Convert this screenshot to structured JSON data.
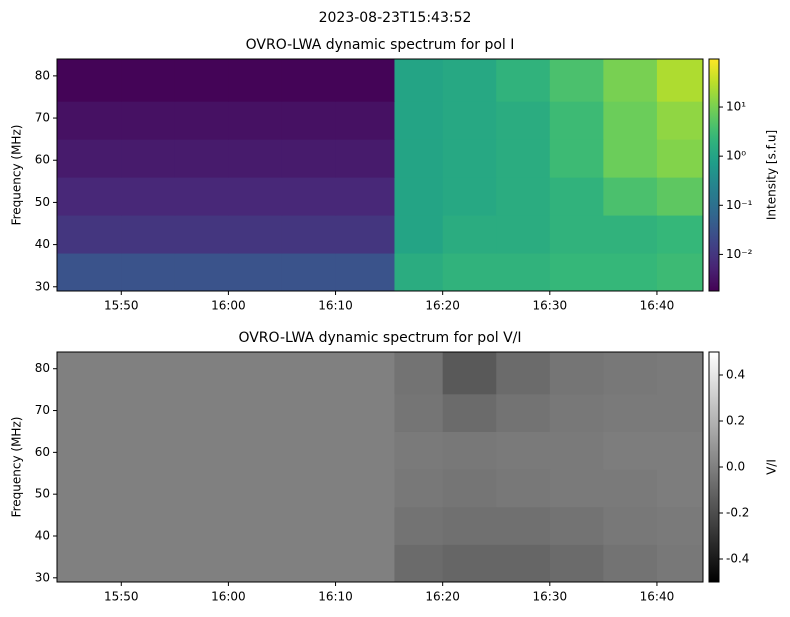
{
  "title": "2023-08-23T15:43:52",
  "chart_data": [
    {
      "type": "heatmap",
      "title": "OVRO-LWA dynamic spectrum for pol I",
      "ylabel": "Frequency (MHz)",
      "x": [
        944,
        950,
        955,
        960,
        965,
        970,
        975.5,
        980,
        985,
        990,
        995,
        1000,
        1004.3
      ],
      "y": [
        29,
        38,
        47,
        56,
        65,
        74,
        84
      ],
      "z": [
        [
          0.03,
          0.03,
          0.03,
          0.03,
          0.03,
          0.03,
          1.5,
          2,
          2,
          2.5,
          2.5,
          3
        ],
        [
          0.01,
          0.01,
          0.01,
          0.01,
          0.01,
          0.01,
          1,
          1.5,
          1.5,
          2,
          2,
          2.5
        ],
        [
          0.006,
          0.006,
          0.006,
          0.006,
          0.006,
          0.006,
          1,
          1.2,
          1.5,
          2,
          4,
          6
        ],
        [
          0.004,
          0.004,
          0.004,
          0.004,
          0.004,
          0.004,
          1,
          1.2,
          1.5,
          3,
          8,
          12
        ],
        [
          0.003,
          0.003,
          0.003,
          0.003,
          0.003,
          0.003,
          1,
          1.2,
          1.5,
          3,
          8,
          15
        ],
        [
          0.002,
          0.002,
          0.002,
          0.002,
          0.002,
          0.002,
          1,
          1.2,
          2,
          4,
          10,
          25
        ]
      ],
      "xlim": [
        944,
        1004.3
      ],
      "ylim": [
        29,
        84
      ],
      "xticks": [
        {
          "value": 950,
          "label": "15:50"
        },
        {
          "value": 960,
          "label": "16:00"
        },
        {
          "value": 970,
          "label": "16:10"
        },
        {
          "value": 980,
          "label": "16:20"
        },
        {
          "value": 990,
          "label": "16:30"
        },
        {
          "value": 1000,
          "label": "16:40"
        }
      ],
      "yticks": [
        30,
        40,
        50,
        60,
        70,
        80
      ],
      "colorbar": {
        "label": "Intensity [s.f.u]",
        "colormap": "viridis",
        "log": true,
        "lim": [
          0.0018,
          95
        ],
        "ticks": [
          {
            "value": 0.01,
            "label": "10⁻²"
          },
          {
            "value": 0.1,
            "label": "10⁻¹"
          },
          {
            "value": 1,
            "label": "10⁰"
          },
          {
            "value": 10,
            "label": "10¹"
          }
        ]
      }
    },
    {
      "type": "heatmap",
      "title": "OVRO-LWA dynamic spectrum for pol V/I",
      "ylabel": "Frequency (MHz)",
      "x": [
        944,
        950,
        955,
        960,
        965,
        970,
        975.5,
        980,
        985,
        990,
        995,
        1000,
        1004.3
      ],
      "y": [
        29,
        38,
        47,
        56,
        65,
        74,
        84
      ],
      "z": [
        [
          0,
          0,
          0,
          0,
          0,
          0,
          -0.08,
          -0.1,
          -0.1,
          -0.08,
          -0.05,
          -0.03
        ],
        [
          0,
          0,
          0,
          0,
          0,
          0,
          -0.05,
          -0.06,
          -0.06,
          -0.05,
          -0.03,
          -0.02
        ],
        [
          0,
          0,
          0,
          0,
          0,
          0,
          -0.03,
          -0.04,
          -0.03,
          -0.02,
          -0.02,
          -0.01
        ],
        [
          0,
          0,
          0,
          0,
          0,
          0,
          -0.02,
          -0.03,
          -0.02,
          -0.02,
          -0.01,
          -0.01
        ],
        [
          0,
          0,
          0,
          0,
          0,
          0,
          -0.04,
          -0.08,
          -0.05,
          -0.03,
          -0.02,
          -0.02
        ],
        [
          0,
          0,
          0,
          0,
          0,
          0,
          -0.05,
          -0.15,
          -0.08,
          -0.04,
          -0.03,
          -0.02
        ]
      ],
      "xlim": [
        944,
        1004.3
      ],
      "ylim": [
        29,
        84
      ],
      "xticks": [
        {
          "value": 950,
          "label": "15:50"
        },
        {
          "value": 960,
          "label": "16:00"
        },
        {
          "value": 970,
          "label": "16:10"
        },
        {
          "value": 980,
          "label": "16:20"
        },
        {
          "value": 990,
          "label": "16:30"
        },
        {
          "value": 1000,
          "label": "16:40"
        }
      ],
      "yticks": [
        30,
        40,
        50,
        60,
        70,
        80
      ],
      "colorbar": {
        "label": "V/I",
        "colormap": "gray",
        "log": false,
        "lim": [
          -0.5,
          0.5
        ],
        "ticks": [
          -0.4,
          -0.2,
          {
            "value": 0,
            "label": "0.0"
          },
          0.2,
          0.4
        ]
      }
    }
  ]
}
